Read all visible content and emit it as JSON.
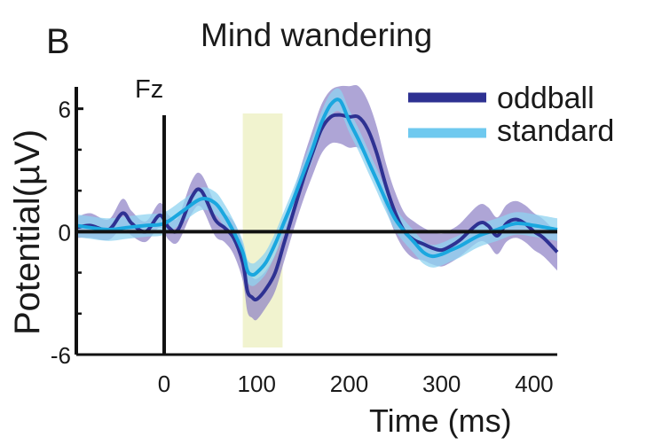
{
  "panel_label": "B",
  "title": "Mind wandering",
  "electrode_label": "Fz",
  "chart_data": {
    "type": "line",
    "title": "Mind wandering",
    "xlabel": "Time (ms)",
    "ylabel": "Potential(µV)",
    "xlim": [
      -95,
      425
    ],
    "ylim": [
      -6,
      7.5
    ],
    "xticks": [
      0,
      100,
      200,
      300,
      400
    ],
    "yticks": [
      -6,
      0,
      6
    ],
    "highlight_window": [
      85,
      128
    ],
    "grid": false,
    "legend_position": "top-right",
    "colors": {
      "oddball": "#2e3192",
      "oddball_band": "#8b7fc4",
      "standard": "#1aa7df",
      "standard_band": "#8fd3f0",
      "highlight": "#f1f3cf"
    },
    "series": [
      {
        "name": "oddball",
        "x": [
          -95,
          -80,
          -60,
          -45,
          -35,
          -20,
          -5,
          5,
          15,
          30,
          40,
          55,
          65,
          75,
          85,
          90,
          95,
          100,
          110,
          120,
          130,
          140,
          150,
          160,
          170,
          180,
          190,
          200,
          210,
          220,
          230,
          240,
          250,
          260,
          270,
          280,
          290,
          300,
          310,
          320,
          340,
          350,
          360,
          370,
          380,
          390,
          400,
          410,
          425
        ],
        "y": [
          0.2,
          0.3,
          0.1,
          0.9,
          0.4,
          0.0,
          0.8,
          0.2,
          0.1,
          1.7,
          2.0,
          0.6,
          0.2,
          -0.3,
          -1.5,
          -2.9,
          -3.2,
          -3.3,
          -2.8,
          -2.0,
          -0.5,
          1.0,
          2.5,
          3.8,
          5.0,
          5.6,
          5.7,
          5.6,
          5.6,
          5.0,
          3.8,
          2.2,
          0.9,
          0.0,
          -0.4,
          -0.6,
          -0.8,
          -0.9,
          -0.7,
          -0.4,
          0.4,
          0.3,
          -0.2,
          0.4,
          0.6,
          0.4,
          0.0,
          -0.3,
          -1.0
        ],
        "band": [
          0.5,
          0.6,
          0.5,
          0.7,
          0.6,
          0.5,
          0.6,
          0.6,
          0.6,
          0.8,
          0.8,
          0.8,
          0.7,
          0.8,
          0.9,
          1.0,
          1.0,
          1.0,
          0.9,
          0.9,
          0.9,
          0.9,
          1.0,
          1.1,
          1.2,
          1.3,
          1.4,
          1.5,
          1.5,
          1.4,
          1.3,
          1.1,
          1.0,
          0.9,
          0.9,
          0.8,
          0.8,
          0.8,
          0.8,
          0.8,
          0.9,
          0.9,
          0.9,
          0.9,
          0.9,
          0.9,
          0.9,
          0.9,
          0.9
        ]
      },
      {
        "name": "standard",
        "x": [
          -95,
          -80,
          -60,
          -40,
          -20,
          0,
          20,
          40,
          55,
          65,
          75,
          85,
          90,
          95,
          100,
          110,
          120,
          130,
          140,
          150,
          160,
          170,
          180,
          190,
          200,
          210,
          220,
          230,
          240,
          250,
          260,
          270,
          280,
          290,
          300,
          310,
          320,
          340,
          360,
          380,
          400,
          425
        ],
        "y": [
          0.3,
          0.2,
          0.1,
          0.2,
          0.3,
          0.4,
          1.0,
          1.6,
          1.4,
          0.8,
          0.0,
          -1.0,
          -1.9,
          -2.1,
          -2.0,
          -1.5,
          -0.6,
          0.5,
          1.6,
          2.8,
          4.0,
          5.3,
          6.2,
          6.4,
          5.4,
          4.5,
          3.5,
          2.5,
          1.5,
          0.6,
          0.0,
          -0.5,
          -1.0,
          -1.2,
          -1.1,
          -0.9,
          -0.7,
          -0.2,
          0.1,
          0.4,
          0.3,
          0.1
        ]
      }
    ]
  }
}
